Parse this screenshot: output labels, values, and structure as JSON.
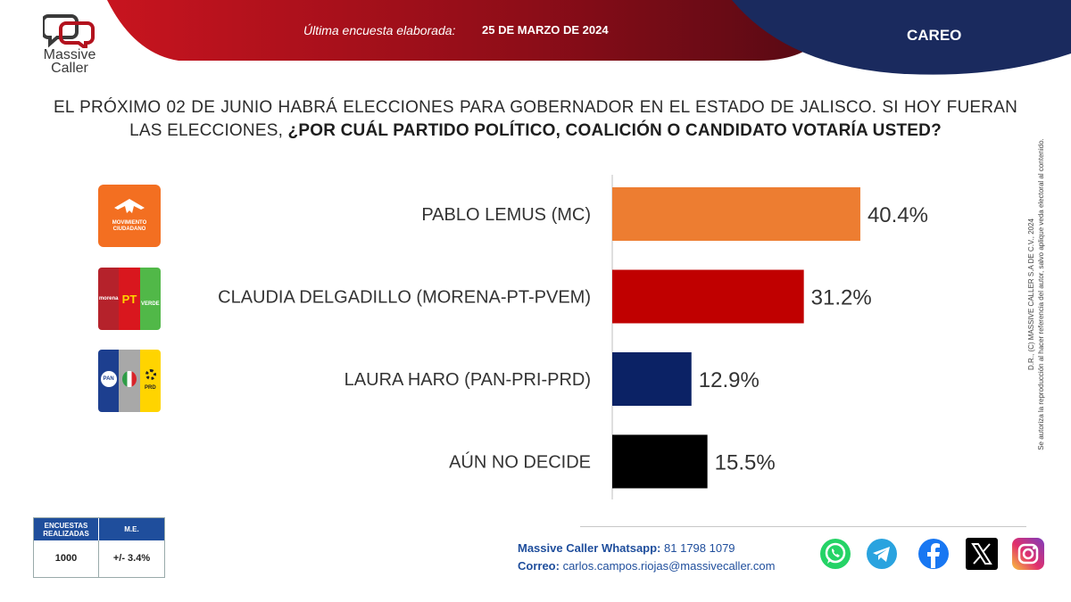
{
  "header": {
    "brand_line1": "Massive",
    "brand_line2": "Caller",
    "survey_label": "Última encuesta elaborada:",
    "survey_date": "25 DE MARZO DE 2024",
    "section": "CAREO",
    "colors": {
      "red": "#b3121e",
      "navy": "#1a2a5e"
    }
  },
  "question": {
    "part1": "EL PRÓXIMO 02 DE JUNIO HABRÁ ELECCIONES PARA GOBERNADOR EN EL ESTADO DE JALISCO. SI HOY FUERAN LAS ELECCIONES, ",
    "part2": "¿POR CUÁL PARTIDO POLÍTICO, COALICIÓN O CANDIDATO VOTARÍA USTED?"
  },
  "party_logos": {
    "mc_text1": "MOVIMIENTO",
    "mc_text2": "CIUDADANO",
    "morena": "morena",
    "pt": "PT",
    "verde": "VERDE",
    "pan": "PAN",
    "prd": "PRD"
  },
  "chart_data": {
    "type": "bar",
    "orientation": "horizontal",
    "title": "",
    "xlabel": "",
    "ylabel": "",
    "categories": [
      "PABLO LEMUS (MC)",
      "CLAUDIA DELGADILLO (MORENA-PT-PVEM)",
      "LAURA HARO (PAN-PRI-PRD)",
      "AÚN NO DECIDE"
    ],
    "values": [
      40.4,
      31.2,
      12.9,
      15.5
    ],
    "value_labels": [
      "40.4%",
      "31.2%",
      "12.9%",
      "15.5%"
    ],
    "colors": [
      "#ed7d31",
      "#c00000",
      "#0b2265",
      "#000000"
    ],
    "xlim": [
      0,
      100
    ],
    "grid": false,
    "legend": "none"
  },
  "stats": {
    "col1_header": "ENCUESTAS REALIZADAS",
    "col2_header": "M.E.",
    "col1_value": "1000",
    "col2_value": "+/- 3.4%"
  },
  "side_text": {
    "line1": "D.R., (C) MASSIVE CALLER S.A DE C.V., 2024",
    "line2": "Se autoriza la reproducción al hacer referencia del autor, salvo aplique veda electoral al contenido."
  },
  "footer": {
    "whatsapp_label": "Massive Caller Whatsapp:",
    "whatsapp_number": "81 1798 1079",
    "email_label": "Correo:",
    "email": "carlos.campos.riojas@massivecaller.com",
    "social_icons": [
      "whatsapp-icon",
      "telegram-icon",
      "facebook-icon",
      "x-icon",
      "instagram-icon"
    ]
  }
}
